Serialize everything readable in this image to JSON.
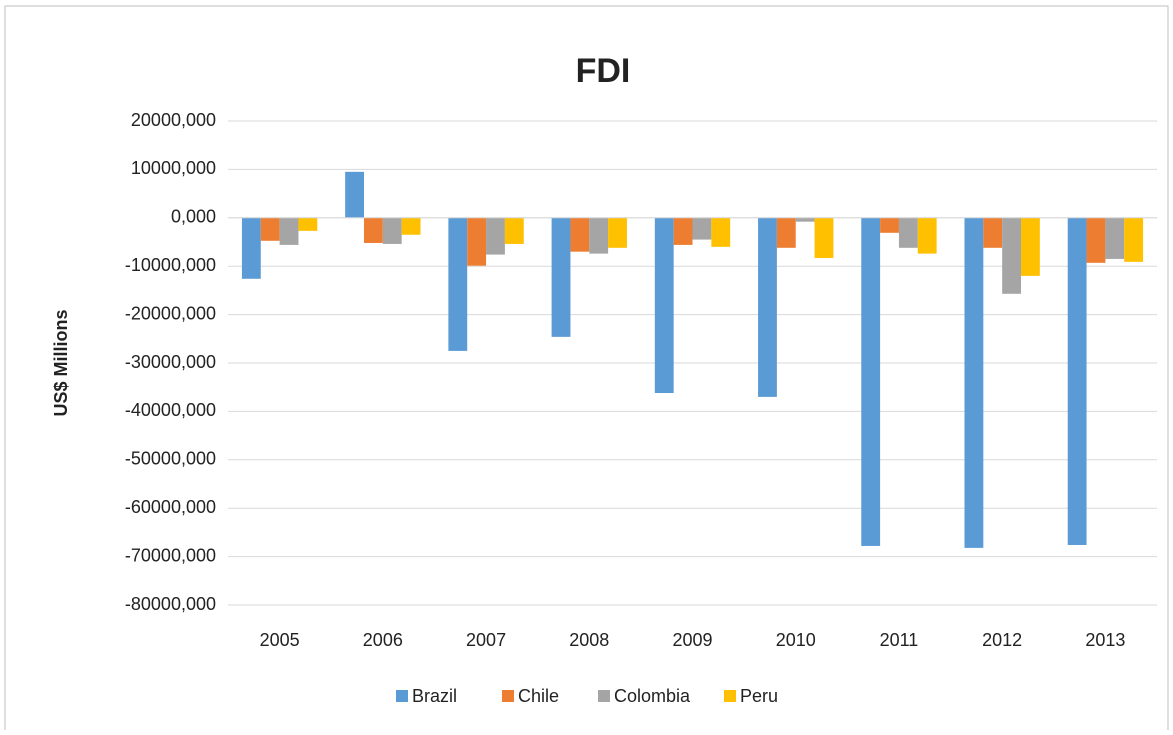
{
  "chart_data": {
    "type": "bar",
    "title": "FDI",
    "y_label": "US$ Millions",
    "categories": [
      "2005",
      "2006",
      "2007",
      "2008",
      "2009",
      "2010",
      "2011",
      "2012",
      "2013"
    ],
    "series": [
      {
        "name": "Brazil",
        "color": "#5b9bd5",
        "values": [
          -12600,
          9500,
          -27500,
          -24600,
          -36200,
          -37000,
          -67800,
          -68200,
          -67600
        ]
      },
      {
        "name": "Chile",
        "color": "#ed7d31",
        "values": [
          -4750,
          -5200,
          -9900,
          -7000,
          -5600,
          -6200,
          -3100,
          -6200,
          -9300
        ]
      },
      {
        "name": "Colombia",
        "color": "#a5a5a5",
        "values": [
          -5600,
          -5400,
          -7600,
          -7400,
          -4500,
          -800,
          -6200,
          -15700,
          -8500
        ]
      },
      {
        "name": "Peru",
        "color": "#ffc000",
        "values": [
          -2700,
          -3500,
          -5400,
          -6200,
          -6000,
          -8300,
          -7400,
          -12000,
          -9100
        ]
      }
    ],
    "ylim": [
      -80000,
      20000
    ],
    "yticks": [
      {
        "value": -80000,
        "label": "-80000,000"
      },
      {
        "value": -70000,
        "label": "-70000,000"
      },
      {
        "value": -60000,
        "label": "-60000,000"
      },
      {
        "value": -50000,
        "label": "-50000,000"
      },
      {
        "value": -40000,
        "label": "-40000,000"
      },
      {
        "value": -30000,
        "label": "-30000,000"
      },
      {
        "value": -20000,
        "label": "-20000,000"
      },
      {
        "value": -10000,
        "label": "-10000,000"
      },
      {
        "value": 0,
        "label": "0,000"
      },
      {
        "value": 10000,
        "label": "10000,000"
      },
      {
        "value": 20000,
        "label": "20000,000"
      }
    ],
    "grid": true,
    "legend": "bottom"
  }
}
